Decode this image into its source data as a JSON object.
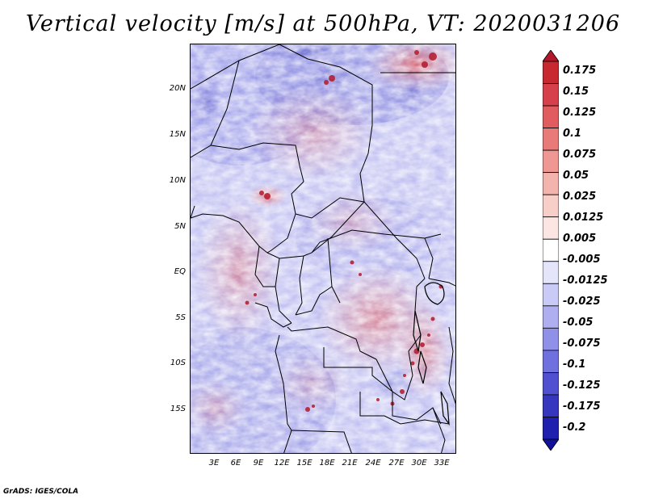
{
  "title": "Vertical velocity [m/s] at 500hPa, VT: 2020031206",
  "credit": "GrADS: IGES/COLA",
  "lat_labels": [
    "20N",
    "15N",
    "10N",
    "5N",
    "EQ",
    "5S",
    "10S",
    "15S"
  ],
  "lon_labels": [
    "3E",
    "6E",
    "9E",
    "12E",
    "15E",
    "18E",
    "21E",
    "24E",
    "27E",
    "30E",
    "33E"
  ],
  "colorbar": {
    "labels": [
      "0.175",
      "0.15",
      "0.125",
      "0.1",
      "0.075",
      "0.05",
      "0.025",
      "0.0125",
      "0.005",
      "-0.005",
      "-0.0125",
      "-0.025",
      "-0.05",
      "-0.075",
      "-0.1",
      "-0.125",
      "-0.175",
      "-0.2"
    ],
    "colors": [
      "#b2182b",
      "#c8282f",
      "#d6404a",
      "#e05c5f",
      "#e87a78",
      "#ef9792",
      "#f4b4ae",
      "#f8cec9",
      "#fbe6e3",
      "#ffffff",
      "#e4e4fb",
      "#cacaf6",
      "#aeaef0",
      "#9090e8",
      "#7070de",
      "#5050d0",
      "#3636bf",
      "#2020ae",
      "#11119a"
    ]
  }
}
